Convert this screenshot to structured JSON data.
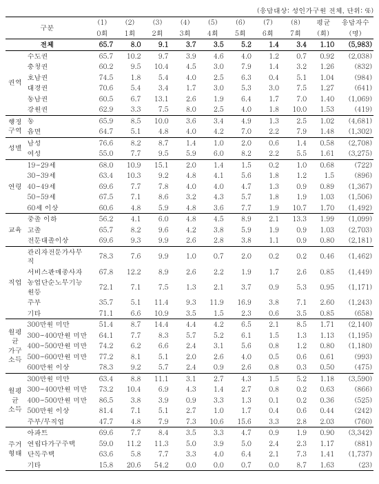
{
  "note": "(응답대상: 성인가구원 전체, 단위: %)",
  "header": {
    "group": "구분",
    "cols": [
      {
        "top": "(1)",
        "bot": "0회"
      },
      {
        "top": "(2)",
        "bot": "1회"
      },
      {
        "top": "(3)",
        "bot": "2회"
      },
      {
        "top": "(4)",
        "bot": "3회"
      },
      {
        "top": "(5)",
        "bot": "4회"
      },
      {
        "top": "(6)",
        "bot": "5회"
      },
      {
        "top": "(7)",
        "bot": "6회"
      },
      {
        "top": "(8)",
        "bot": "7회"
      },
      {
        "top": "평균",
        "bot": "(회)"
      },
      {
        "top": "응답자수",
        "bot": "(명)"
      }
    ]
  },
  "total": {
    "label": "전체",
    "vals": [
      "65.7",
      "8.0",
      "9.1",
      "3.7",
      "3.5",
      "5.2",
      "1.4",
      "3.4",
      "1.10",
      "(5,983)"
    ]
  },
  "groups": [
    {
      "name": "권역",
      "rows": [
        {
          "label": "수도권",
          "vals": [
            "65.7",
            "10.2",
            "9.7",
            "3.9",
            "4.6",
            "4.0",
            "1.2",
            "0.7",
            "0.92",
            "(2,038)"
          ]
        },
        {
          "label": "충청권",
          "vals": [
            "60.2",
            "9.5",
            "10.4",
            "4.5",
            "3.0",
            "7.9",
            "1.4",
            "3.2",
            "1.26",
            "(832)"
          ]
        },
        {
          "label": "호남권",
          "vals": [
            "74.5",
            "1.8",
            "5.4",
            "4.0",
            "2.5",
            "6.3",
            "0.4",
            "5.1",
            "1.04",
            "(984)"
          ]
        },
        {
          "label": "대경권",
          "vals": [
            "70.6",
            "5.4",
            "3.4",
            "1.7",
            "3.0",
            "5.3",
            "3.0",
            "7.5",
            "1.27",
            "(641)"
          ]
        },
        {
          "label": "동남권",
          "vals": [
            "60.5",
            "6.7",
            "13.1",
            "2.6",
            "1.9",
            "6.4",
            "1.7",
            "7.0",
            "1.40",
            "(1,069)"
          ]
        },
        {
          "label": "강원권",
          "vals": [
            "62.9",
            "3.3",
            "7.5",
            "8.0",
            "2.5",
            "4.0",
            "1.8",
            "10.0",
            "1.53",
            "(419)"
          ]
        }
      ]
    },
    {
      "name": "행정\n구역",
      "rows": [
        {
          "label": "동",
          "vals": [
            "65.9",
            "8.5",
            "10.0",
            "3.6",
            "3.4",
            "4.9",
            "1.3",
            "2.5",
            "1.02",
            "(4,681)"
          ]
        },
        {
          "label": "읍면",
          "vals": [
            "64.7",
            "5.1",
            "4.8",
            "4.0",
            "4.2",
            "7.0",
            "2.2",
            "7.9",
            "1.48",
            "(1,302)"
          ]
        }
      ]
    },
    {
      "name": "성별",
      "rows": [
        {
          "label": "남성",
          "vals": [
            "76.6",
            "8.2",
            "8.7",
            "1.4",
            "1.0",
            "2.0",
            "0.6",
            "1.4",
            "0.58",
            "(2,708)"
          ]
        },
        {
          "label": "여성",
          "vals": [
            "55.0",
            "7.7",
            "9.5",
            "5.9",
            "6.0",
            "8.2",
            "2.2",
            "5.5",
            "1.61",
            "(3,275)"
          ]
        }
      ]
    },
    {
      "name": "연령",
      "rows": [
        {
          "label": "19~29세",
          "vals": [
            "68.0",
            "10.9",
            "15.1",
            "2.0",
            "1.4",
            "1.5",
            "0.2",
            "1.0",
            "0.68",
            "(722)"
          ]
        },
        {
          "label": "30~39세",
          "vals": [
            "63.4",
            "10.3",
            "9.2",
            "4.8",
            "4.1",
            "5.6",
            "1.8",
            "1.2",
            "1.5",
            "(896)"
          ]
        },
        {
          "label": "40~49세",
          "vals": [
            "69.6",
            "7.7",
            "7.8",
            "4.0",
            "4.0",
            "4.7",
            "1.3",
            "0.9",
            "0.89",
            "(1,367)"
          ]
        },
        {
          "label": "50~59세",
          "vals": [
            "67.5",
            "7.1",
            "8.6",
            "3.2",
            "4.3",
            "5.7",
            "1.8",
            "1.9",
            "1.03",
            "(1,506)"
          ]
        },
        {
          "label": "60세 이상",
          "vals": [
            "60.6",
            "4.8",
            "5.9",
            "4.8",
            "3.6",
            "7.7",
            "1.9",
            "10.7",
            "1.70",
            "(1,492)"
          ]
        }
      ]
    },
    {
      "name": "교육",
      "rows": [
        {
          "label": "중졸 이하",
          "vals": [
            "56.2",
            "4.1",
            "6.0",
            "4.8",
            "4.5",
            "8.9",
            "2.1",
            "13.3",
            "1.99",
            "(1,099)"
          ]
        },
        {
          "label": "고졸",
          "vals": [
            "65.7",
            "8.2",
            "9.6",
            "4.2",
            "3.8",
            "5.9",
            "1.9",
            "0.9",
            "1.03",
            "(2,703)"
          ]
        },
        {
          "label": "전문대졸이상",
          "vals": [
            "69.6",
            "9.3",
            "9.9",
            "2.6",
            "2.8",
            "3.8",
            "1.1",
            "0.9",
            "0.80",
            "(2,181)"
          ]
        }
      ]
    },
    {
      "name": "직업",
      "rows": [
        {
          "label": "관리자전문가사무직",
          "vals": [
            "78.3",
            "7.6",
            "9.9",
            "1.0",
            "0.7",
            "2.0",
            "0.2",
            "0.2",
            "0.46",
            "(1,462)"
          ]
        },
        {
          "label": "서비스판매종사자",
          "vals": [
            "67.8",
            "12.2",
            "8.9",
            "2.6",
            "2.2",
            "1.9",
            "1.7",
            "2.6",
            "0.85",
            "(1,449)"
          ]
        },
        {
          "label": "농업단순노무기능원등",
          "vals": [
            "72.1",
            "7.1",
            "7.5",
            "1.3",
            "2.1",
            "3.7",
            "0.9",
            "5.3",
            "0.95",
            "(1,171)"
          ]
        },
        {
          "label": "주부",
          "vals": [
            "35.7",
            "5.1",
            "11.4",
            "9.3",
            "11.9",
            "16.9",
            "3.8",
            "7.1",
            "2.60",
            "(1,243)"
          ]
        },
        {
          "label": "기타",
          "vals": [
            "71.1",
            "6.6",
            "10.9",
            "3.5",
            "1.5",
            "2.3",
            "0.6",
            "3.5",
            "0.85",
            "(658)"
          ]
        }
      ]
    },
    {
      "name": "월평균\n가구\n소득",
      "rows": [
        {
          "label": "300만원 미만",
          "vals": [
            "51.4",
            "8.7",
            "14.4",
            "4.4",
            "4.2",
            "6.5",
            "2.1",
            "8.5",
            "1.71",
            "(2,140)"
          ]
        },
        {
          "label": "300~400만원 미만",
          "vals": [
            "64.1",
            "7.7",
            "8.3",
            "5.7",
            "5.2",
            "6.1",
            "1.5",
            "1.3",
            "1.13",
            "(1,195)"
          ]
        },
        {
          "label": "400~500만원 미만",
          "vals": [
            "74.2",
            "6.2",
            "6.6",
            "2.4",
            "3.1",
            "5.6",
            "0.8",
            "1.2",
            "0.80",
            "(1,180)"
          ]
        },
        {
          "label": "500~600만원 미만",
          "vals": [
            "77.2",
            "8.1",
            "5.1",
            "2.0",
            "2.6",
            "4.0",
            "0.5",
            "0.6",
            "0.61",
            "(993)"
          ]
        },
        {
          "label": "600만원 이상",
          "vals": [
            "78.3",
            "9.2",
            "5.7",
            "2.4",
            "0.9",
            "2.6",
            "0.8",
            "0.3",
            "0.50",
            "(475)"
          ]
        }
      ]
    },
    {
      "name": "월평균\n소득",
      "rows": [
        {
          "label": "300만원 미만",
          "vals": [
            "63.4",
            "8.8",
            "11.1",
            "3.1",
            "2.7",
            "4.3",
            "1.5",
            "5.2",
            "1.18",
            "(3,590)"
          ]
        },
        {
          "label": "300~400만원 미만",
          "vals": [
            "73.2",
            "10.4",
            "6.9",
            "4.3",
            "1.4",
            "2.7",
            "0.8",
            "0.2",
            "0.63",
            "(866)"
          ]
        },
        {
          "label": "400~500만원 미만",
          "vals": [
            "86.5",
            "3.8",
            "3.9",
            "0.9",
            "3.3",
            "1.3",
            "0.1",
            "0.2",
            "0.36",
            "(525)"
          ]
        },
        {
          "label": "500만원 이상",
          "vals": [
            "81.4",
            "7.1",
            "5.1",
            "2.7",
            "1.0",
            "1.7",
            "0.4",
            "0.6",
            "0.44",
            "(242)"
          ]
        },
        {
          "label": "주부/무직업",
          "vals": [
            "47.7",
            "4.8",
            "7.9",
            "7.3",
            "10.6",
            "15.6",
            "3.3",
            "2.8",
            "2.03",
            "(760)"
          ]
        }
      ]
    },
    {
      "name": "주거\n형태",
      "rows": [
        {
          "label": "아파트",
          "vals": [
            "69.6",
            "7.7",
            "8.4",
            "3.5",
            "3.3",
            "4.7",
            "0.9",
            "1.9",
            "0.90",
            "(3,342)"
          ]
        },
        {
          "label": "연립다가구주택",
          "vals": [
            "59.0",
            "11.2",
            "11.3",
            "5.0",
            "3.9",
            "5.0",
            "2.4",
            "2.3",
            "1.17",
            "(881)"
          ]
        },
        {
          "label": "단독주택",
          "vals": [
            "63.6",
            "5.8",
            "7.7",
            "3.3",
            "4.0",
            "6.4",
            "2.1",
            "7.3",
            "1.41",
            "(1,737)"
          ]
        },
        {
          "label": "기타",
          "vals": [
            "15.8",
            "20.6",
            "54.2",
            "0.0",
            "0.0",
            "0.7",
            "0.0",
            "8.7",
            "1.63",
            "(23)"
          ]
        }
      ]
    }
  ]
}
